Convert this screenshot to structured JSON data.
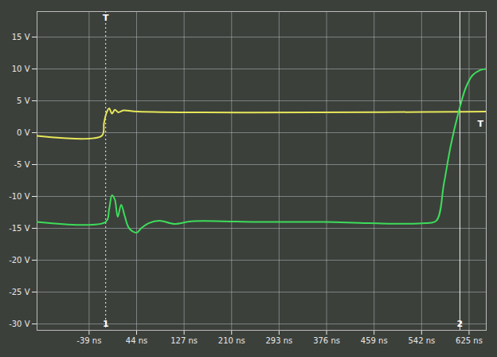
{
  "chart_data": {
    "type": "line",
    "xlim": [
      -130,
      655
    ],
    "ylim": [
      -31,
      19
    ],
    "xticks": [
      {
        "value": -39,
        "label": "-39 ns"
      },
      {
        "value": 44,
        "label": "44 ns"
      },
      {
        "value": 127,
        "label": "127 ns"
      },
      {
        "value": 210,
        "label": "210 ns"
      },
      {
        "value": 293,
        "label": "293 ns"
      },
      {
        "value": 376,
        "label": "376 ns"
      },
      {
        "value": 459,
        "label": "459 ns"
      },
      {
        "value": 542,
        "label": "542 ns"
      },
      {
        "value": 625,
        "label": "625 ns"
      }
    ],
    "yticks": [
      {
        "value": 15,
        "label": "15 V"
      },
      {
        "value": 10,
        "label": "10 V"
      },
      {
        "value": 5,
        "label": "5 V"
      },
      {
        "value": 0,
        "label": "0 V"
      },
      {
        "value": -5,
        "label": "-5 V"
      },
      {
        "value": -10,
        "label": "-10 V"
      },
      {
        "value": -15,
        "label": "-15 V"
      },
      {
        "value": -20,
        "label": "-20 V"
      },
      {
        "value": -25,
        "label": "-25 V"
      },
      {
        "value": -30,
        "label": "-30 V"
      }
    ],
    "grid": true,
    "series": [
      {
        "color": "#e6e65a",
        "x": [
          -130,
          -17,
          -13,
          -9,
          -4,
          1,
          6,
          12,
          21,
          46,
          655
        ],
        "values": [
          -0.5,
          -0.5,
          1.5,
          3.0,
          3.8,
          3.0,
          3.6,
          3.2,
          3.5,
          3.3,
          3.3
        ]
      },
      {
        "color": "#3ddc5a",
        "x": [
          -130,
          -10,
          -4,
          1,
          6,
          11,
          17,
          23,
          31,
          44,
          52,
          65,
          84,
          109,
          140,
          197,
          247,
          373,
          449,
          549,
          568,
          581,
          593,
          606,
          619,
          631,
          644,
          655
        ],
        "values": [
          -14,
          -14,
          -12,
          -9.8,
          -10.5,
          -13.2,
          -11.3,
          -13,
          -15,
          -15.7,
          -15,
          -14.2,
          -13.8,
          -14.3,
          -13.9,
          -13.9,
          -14,
          -14,
          -14.2,
          -14.2,
          -13.8,
          -8,
          -2,
          3,
          7,
          9,
          9.8,
          10
        ]
      }
    ],
    "cursors": [
      {
        "label": "1",
        "x": -10,
        "line_style": "dotted"
      },
      {
        "label": "2",
        "x": 609,
        "line_style": "solid"
      }
    ],
    "annotations": [
      {
        "text": "T",
        "x": -10,
        "y": 18
      },
      {
        "text": "T",
        "x": 645,
        "y": 1.4
      }
    ]
  }
}
